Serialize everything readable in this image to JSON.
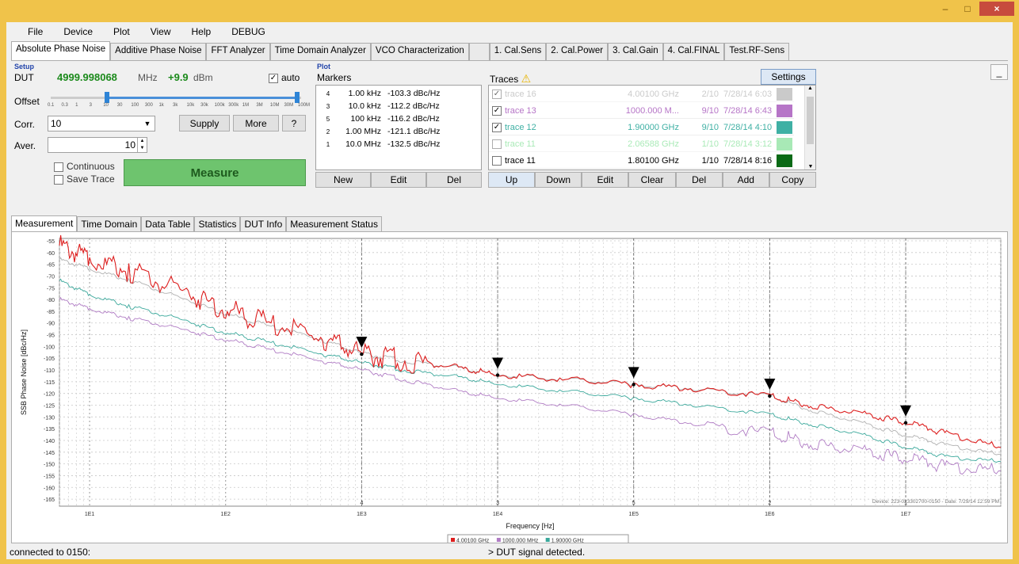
{
  "window": {
    "minimize": "–",
    "maximize": "□",
    "close": "×"
  },
  "menu": [
    "File",
    "Device",
    "Plot",
    "View",
    "Help",
    "DEBUG"
  ],
  "tabs": [
    "Absolute Phase Noise",
    "Additive Phase Noise",
    "FFT Analyzer",
    "Time Domain Analyzer",
    "VCO Characterization",
    "",
    "1. Cal.Sens",
    "2. Cal.Power",
    "3. Cal.Gain",
    "4. Cal.FINAL",
    "Test.RF-Sens"
  ],
  "setup": {
    "section": "Setup",
    "dut_label": "DUT",
    "freq_value": "4999.998068",
    "freq_unit": "MHz",
    "power_value": "+9.9",
    "power_unit": "dBm",
    "auto_label": "auto",
    "offset_label": "Offset",
    "offset_ticks": [
      "0.1",
      "0.3",
      "1",
      "3",
      "10",
      "30",
      "100",
      "300",
      "1k",
      "3k",
      "10k",
      "30k",
      "100k",
      "300k",
      "1M",
      "3M",
      "10M",
      "30M",
      "100M"
    ],
    "corr_label": "Corr.",
    "corr_value": "10",
    "aver_label": "Aver.",
    "aver_value": "10",
    "supply_button": "Supply",
    "more_button": "More",
    "help_button": "?",
    "continuous_label": "Continuous",
    "save_trace_label": "Save Trace",
    "measure_button": "Measure"
  },
  "plot_section": {
    "section": "Plot",
    "markers_label": "Markers",
    "markers": [
      {
        "id": "4",
        "offset": "1.00 kHz",
        "value": "-103.3 dBc/Hz"
      },
      {
        "id": "3",
        "offset": "10.0 kHz",
        "value": "-112.2 dBc/Hz"
      },
      {
        "id": "5",
        "offset": "100 kHz",
        "value": "-116.2 dBc/Hz"
      },
      {
        "id": "2",
        "offset": "1.00 MHz",
        "value": "-121.1 dBc/Hz"
      },
      {
        "id": "1",
        "offset": "10.0 MHz",
        "value": "-132.5 dBc/Hz"
      }
    ],
    "new_button": "New",
    "edit_button": "Edit",
    "del_button": "Del"
  },
  "traces": {
    "label": "Traces",
    "settings_button": "Settings",
    "rows": [
      {
        "checked": true,
        "name": "trace 16",
        "freq": "4.00100 GHz",
        "count": "2/10",
        "date": "7/28/14 6:03",
        "color": "#a8a8a8"
      },
      {
        "checked": true,
        "name": "trace 13",
        "freq": "1000.000 M...",
        "count": "9/10",
        "date": "7/28/14 6:43",
        "color": "#b675c7"
      },
      {
        "checked": true,
        "name": "trace 12",
        "freq": "1.90000 GHz",
        "count": "9/10",
        "date": "7/28/14 4:10",
        "color": "#3fb0a4"
      },
      {
        "checked": false,
        "name": "trace 11",
        "freq": "2.06588 GHz",
        "count": "1/10",
        "date": "7/28/14 3:12",
        "color": "#6fdc86"
      },
      {
        "checked": false,
        "name": "trace 11",
        "freq": "1.80100 GHz",
        "count": "1/10",
        "date": "7/28/14 8:16",
        "color": "#0b6a16"
      }
    ],
    "buttons": [
      "Up",
      "Down",
      "Edit",
      "Clear",
      "Del",
      "Add",
      "Copy"
    ]
  },
  "collapse_button": "_",
  "subtabs": [
    "Measurement",
    "Time Domain",
    "Data Table",
    "Statistics",
    "DUT Info",
    "Measurement Status"
  ],
  "chart_data": {
    "type": "line",
    "xlabel": "Frequency [Hz]",
    "ylabel": "SSB Phase Noise [dBc/Hz]",
    "x_scale": "log",
    "xlim": [
      6,
      50000000
    ],
    "ylim": [
      -168,
      -54
    ],
    "x_ticks": [
      "1E1",
      "1E2",
      "1E3",
      "1E4",
      "1E5",
      "1E6",
      "1E7"
    ],
    "y_ticks": [
      -55,
      -60,
      -65,
      -70,
      -75,
      -80,
      -85,
      -90,
      -95,
      -100,
      -105,
      -110,
      -115,
      -120,
      -125,
      -130,
      -135,
      -140,
      -145,
      -150,
      -155,
      -160,
      -165
    ],
    "grid": true,
    "annotation": "Device: 223-023302700-0150 - Date: 7/29/14 12:59 PM",
    "legend": [
      "4.00100 GHz",
      "1000.000 MHz",
      "1.90000 GHz"
    ],
    "series": [
      {
        "name": "4.00100 GHz",
        "color": "#dd1f1f",
        "x": [
          6,
          10,
          20,
          50,
          100,
          200,
          500,
          1000,
          2000,
          5000,
          10000,
          30000,
          100000,
          300000,
          1000000,
          2000000,
          5000000,
          10000000,
          20000000,
          50000000
        ],
        "y": [
          -57,
          -63,
          -68,
          -77,
          -84,
          -90,
          -96,
          -103.3,
          -106,
          -109,
          -112.2,
          -114,
          -116.2,
          -118,
          -121.1,
          -125,
          -129,
          -132.5,
          -137,
          -143
        ]
      },
      {
        "name": "1000.000 MHz",
        "color": "#b07cc4",
        "x": [
          6,
          10,
          20,
          50,
          100,
          200,
          500,
          1000,
          2000,
          5000,
          10000,
          30000,
          100000,
          300000,
          1000000,
          2000000,
          5000000,
          10000000,
          20000000,
          50000000
        ],
        "y": [
          -80,
          -84,
          -88,
          -93,
          -97,
          -101,
          -106,
          -110,
          -114,
          -119,
          -122,
          -125,
          -129,
          -133,
          -137,
          -141,
          -145,
          -148,
          -151,
          -153
        ]
      },
      {
        "name": "1.90000 GHz",
        "color": "#3aa89b",
        "x": [
          6,
          10,
          20,
          50,
          100,
          200,
          500,
          1000,
          2000,
          5000,
          10000,
          30000,
          100000,
          300000,
          1000000,
          2000000,
          5000000,
          10000000,
          20000000,
          50000000
        ],
        "y": [
          -72,
          -78,
          -83,
          -89,
          -94,
          -98,
          -103,
          -107,
          -110,
          -113,
          -116,
          -119,
          -122,
          -125,
          -129,
          -133,
          -138,
          -143,
          -147,
          -149
        ]
      },
      {
        "name": "",
        "color": "#b0b0b0",
        "x": [
          6,
          10,
          20,
          50,
          100,
          200,
          500,
          1000,
          2000,
          5000,
          10000,
          30000,
          100000,
          300000,
          1000000,
          2000000,
          5000000,
          10000000,
          20000000,
          50000000
        ],
        "y": [
          -63,
          -67,
          -72,
          -80,
          -86,
          -91,
          -97,
          -103,
          -106,
          -109,
          -112,
          -114,
          -116,
          -118,
          -121,
          -127,
          -133,
          -138,
          -142,
          -146
        ]
      }
    ],
    "markers": [
      {
        "label": "4",
        "x": 1000,
        "y": -103.3
      },
      {
        "label": "3",
        "x": 10000,
        "y": -112.2
      },
      {
        "label": "5",
        "x": 100000,
        "y": -116.2
      },
      {
        "label": "2",
        "x": 1000000,
        "y": -121.1
      },
      {
        "label": "1",
        "x": 10000000,
        "y": -132.5
      }
    ]
  },
  "status": {
    "left": "connected to 0150:",
    "center": "> DUT signal detected."
  }
}
